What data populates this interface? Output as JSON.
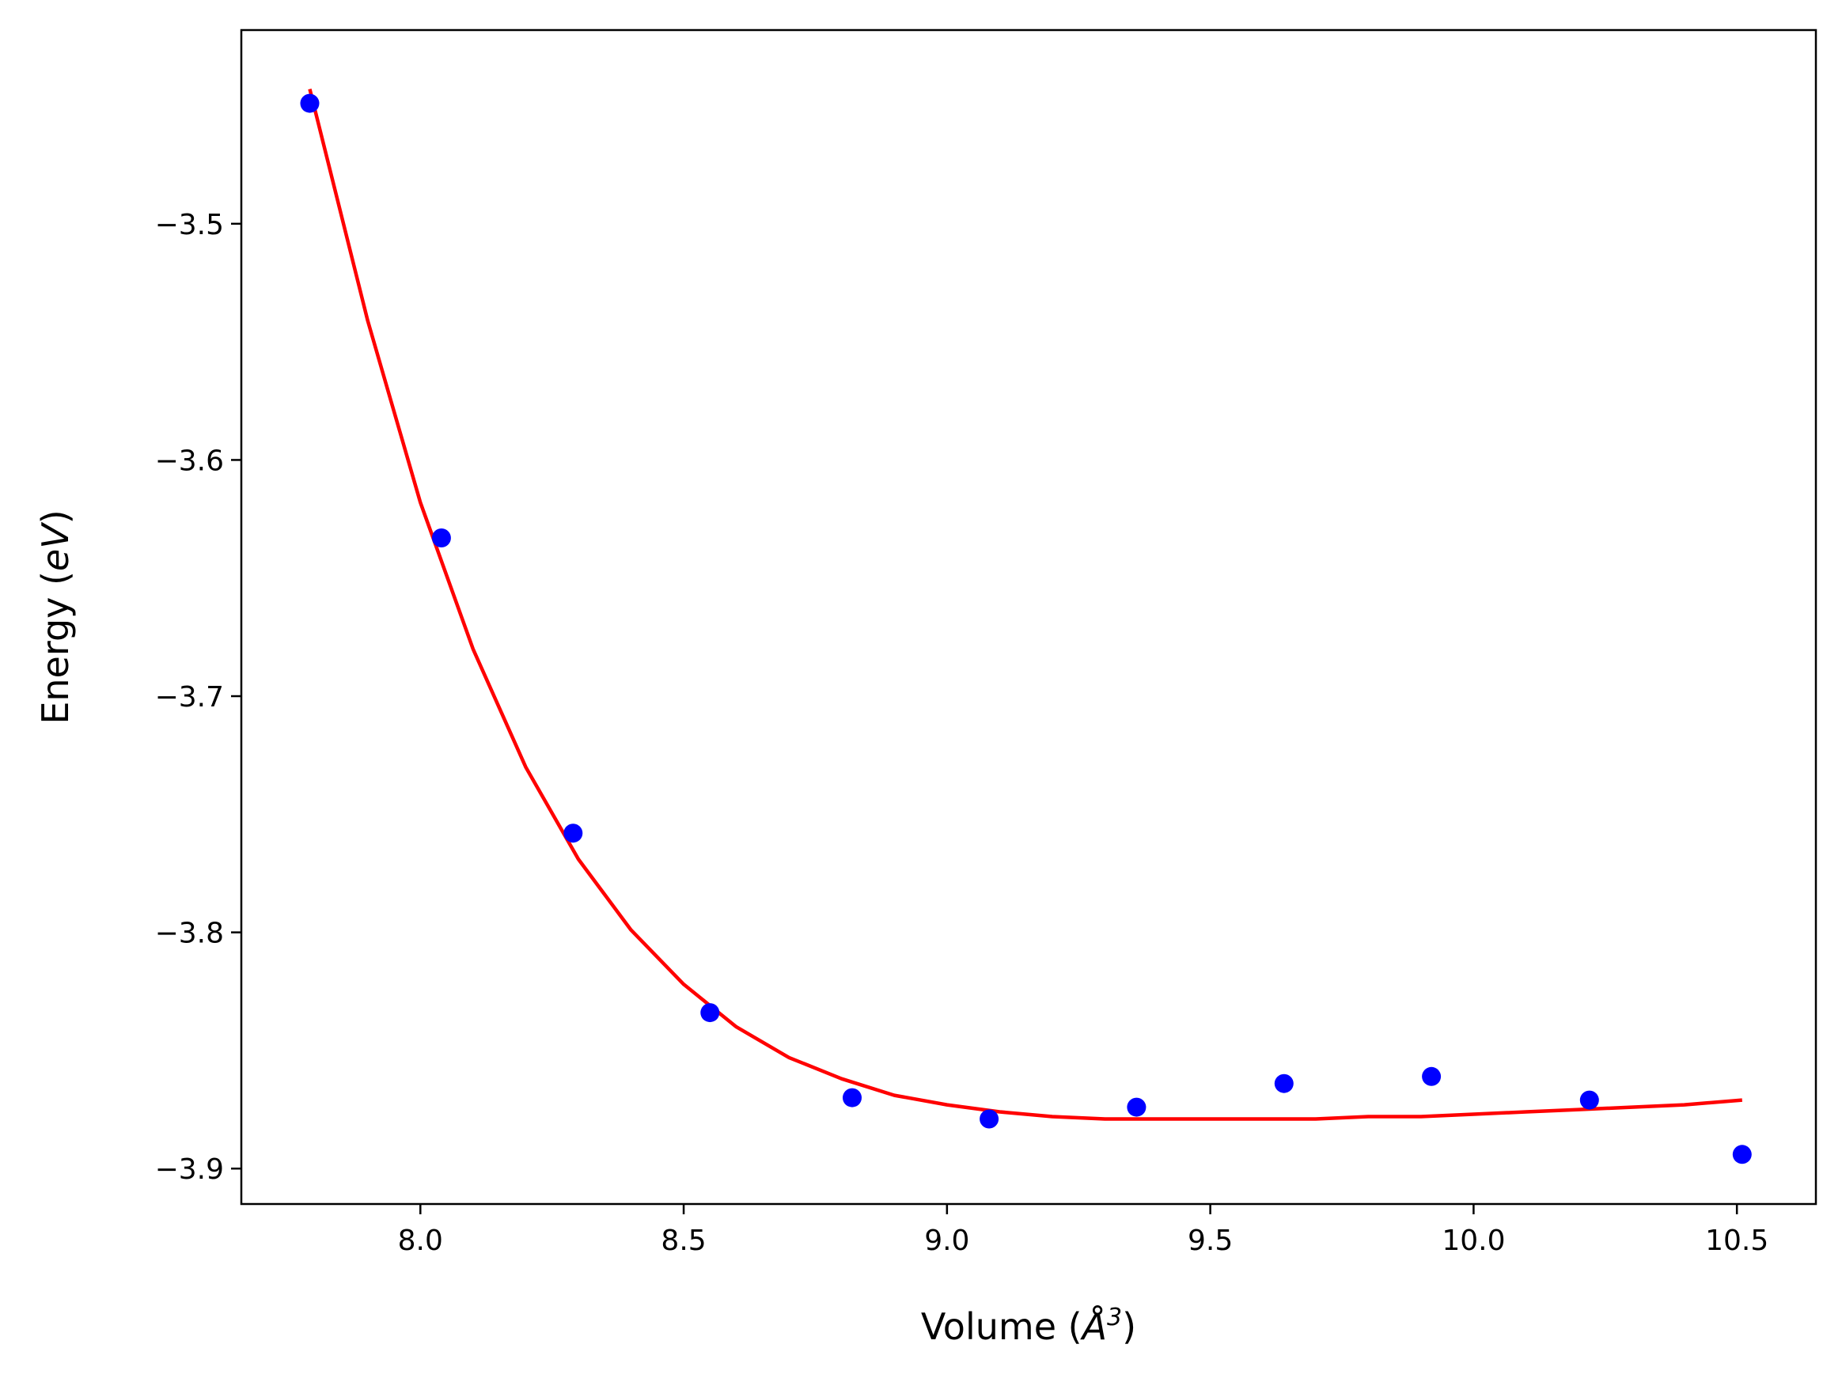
{
  "chart_data": {
    "type": "scatter",
    "title": "",
    "xlabel_prefix": "Volume (",
    "xlabel_unit": "Å",
    "xlabel_exp": "3",
    "xlabel_suffix": ")",
    "ylabel_prefix": "Energy (",
    "ylabel_unit": "eV",
    "ylabel_suffix": ")",
    "xlim": [
      7.66,
      10.65
    ],
    "ylim": [
      -3.915,
      -3.418
    ],
    "xticks": [
      8.0,
      8.5,
      9.0,
      9.5,
      10.0,
      10.5
    ],
    "xtick_labels": [
      "8.0",
      "8.5",
      "9.0",
      "9.5",
      "10.0",
      "10.5"
    ],
    "yticks": [
      -3.5,
      -3.6,
      -3.7,
      -3.8,
      -3.9
    ],
    "ytick_labels": [
      "−3.5",
      "−3.6",
      "−3.7",
      "−3.8",
      "−3.9"
    ],
    "grid": false,
    "colors": {
      "points": "#0000ff",
      "fit": "#ff0000",
      "axes": "#000000"
    },
    "series": [
      {
        "kind": "points",
        "x": [
          7.79,
          8.04,
          8.29,
          8.55,
          8.82,
          9.08,
          9.36,
          9.64,
          9.92,
          10.22,
          10.51
        ],
        "y": [
          -3.449,
          -3.633,
          -3.758,
          -3.834,
          -3.87,
          -3.879,
          -3.874,
          -3.864,
          -3.861,
          -3.871,
          -3.894
        ]
      },
      {
        "kind": "fit-line",
        "x": [
          7.79,
          7.9,
          8.0,
          8.1,
          8.2,
          8.3,
          8.4,
          8.5,
          8.6,
          8.7,
          8.8,
          8.9,
          9.0,
          9.1,
          9.2,
          9.3,
          9.4,
          9.5,
          9.6,
          9.7,
          9.8,
          9.9,
          10.0,
          10.1,
          10.2,
          10.3,
          10.4,
          10.51
        ],
        "y": [
          -3.443,
          -3.541,
          -3.618,
          -3.68,
          -3.73,
          -3.769,
          -3.799,
          -3.822,
          -3.84,
          -3.853,
          -3.862,
          -3.869,
          -3.873,
          -3.876,
          -3.878,
          -3.879,
          -3.879,
          -3.879,
          -3.879,
          -3.879,
          -3.878,
          -3.878,
          -3.877,
          -3.876,
          -3.875,
          -3.874,
          -3.873,
          -3.871
        ]
      }
    ]
  }
}
